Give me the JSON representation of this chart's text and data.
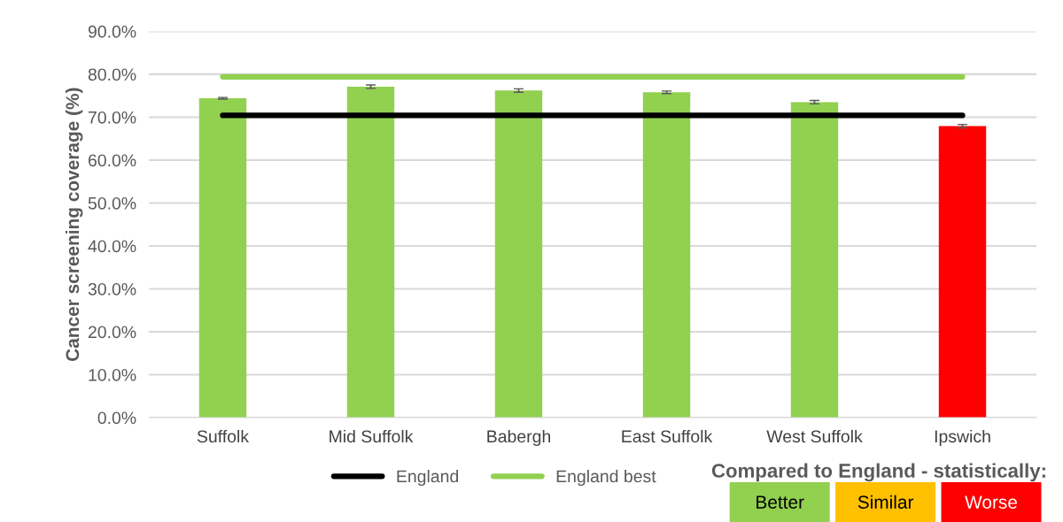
{
  "chart_data": {
    "type": "bar",
    "ylabel": "Cancer screening coverage (%)",
    "categories": [
      "Suffolk",
      "Mid Suffolk",
      "Babergh",
      "East Suffolk",
      "West Suffolk",
      "Ipswich"
    ],
    "series": [
      {
        "values": [
          74.4,
          77.1,
          76.2,
          75.8,
          73.5,
          67.9
        ],
        "colors": [
          "#92d050",
          "#92d050",
          "#92d050",
          "#92d050",
          "#92d050",
          "#ff0000"
        ],
        "errors": [
          0.2,
          0.4,
          0.4,
          0.3,
          0.4,
          0.4
        ]
      },
      {
        "type": "line",
        "name": "England",
        "color": "#000000",
        "values": [
          70.4,
          70.4,
          70.4,
          70.4,
          70.4,
          70.4
        ]
      },
      {
        "type": "line",
        "name": "England best",
        "color": "#92d050",
        "values": [
          79.4,
          79.4,
          79.4,
          79.4,
          79.4,
          79.4
        ]
      }
    ],
    "ylim": [
      0,
      90
    ],
    "yticks": [
      {
        "value": 0,
        "label": "0.0%"
      },
      {
        "value": 10,
        "label": "10.0%"
      },
      {
        "value": 20,
        "label": "20.0%"
      },
      {
        "value": 30,
        "label": "30.0%"
      },
      {
        "value": 40,
        "label": "40.0%"
      },
      {
        "value": 50,
        "label": "50.0%"
      },
      {
        "value": 60,
        "label": "60.0%"
      },
      {
        "value": 70,
        "label": "70.0%"
      },
      {
        "value": 80,
        "label": "80.0%"
      },
      {
        "value": 90,
        "label": "90.0%"
      }
    ],
    "grid": "y",
    "legend": "bottom",
    "annotations": [
      "Compared to England - statistically:",
      "Better",
      "Similar",
      "Worse"
    ]
  }
}
